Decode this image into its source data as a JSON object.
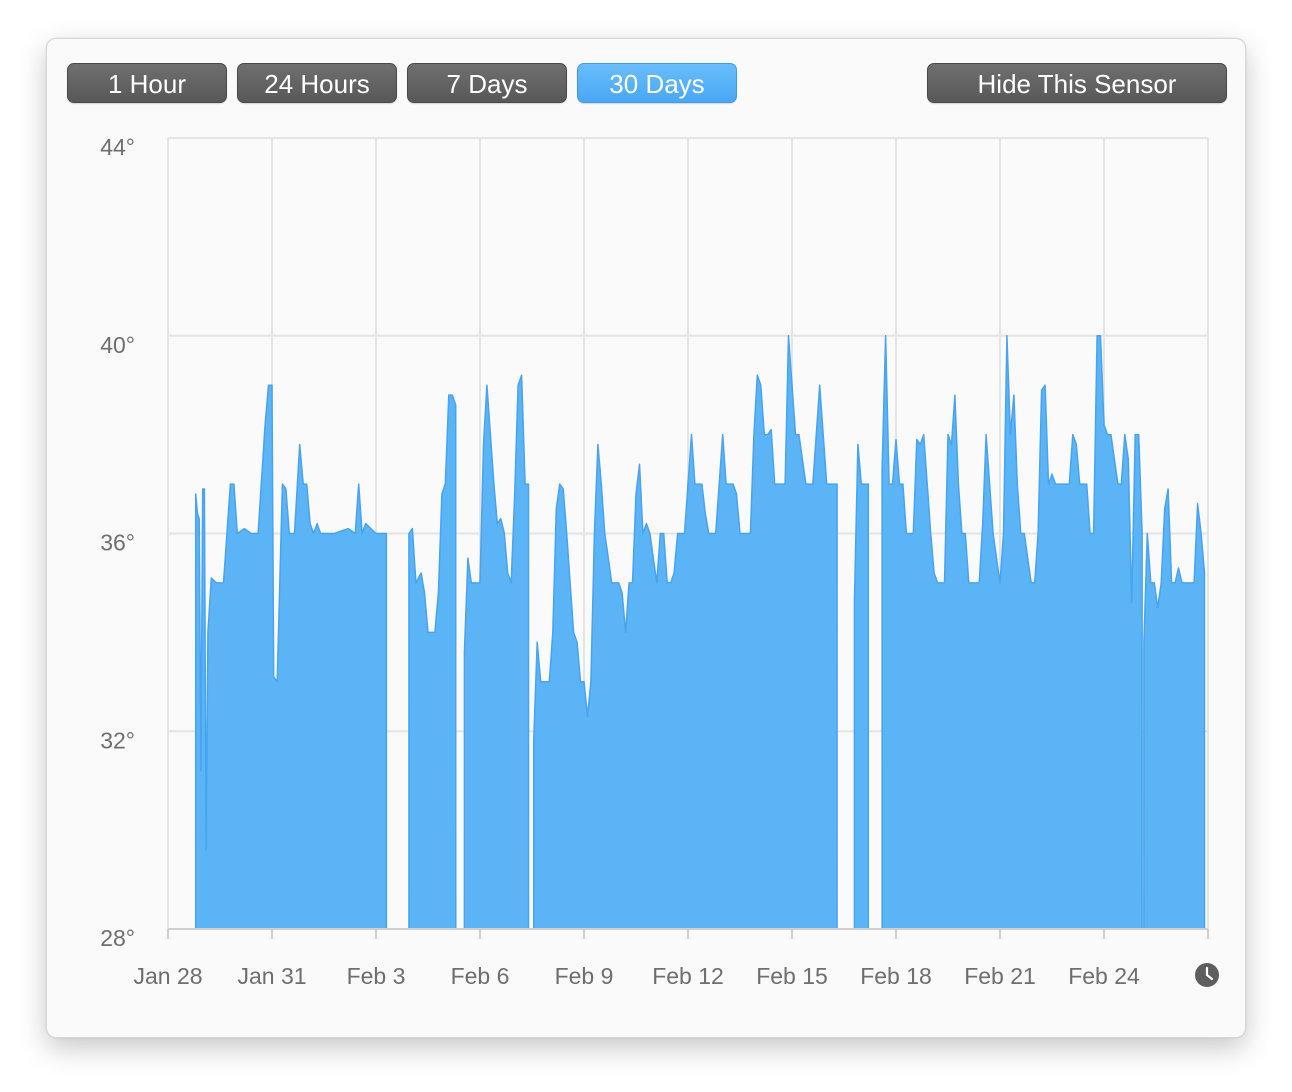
{
  "toolbar": {
    "range_buttons": [
      {
        "label": "1 Hour",
        "selected": false
      },
      {
        "label": "24 Hours",
        "selected": false
      },
      {
        "label": "7 Days",
        "selected": false
      },
      {
        "label": "30 Days",
        "selected": true
      }
    ],
    "hide_label": "Hide This Sensor"
  },
  "colors": {
    "accent": "#5ab4f5",
    "area_fill": "#5ab4f5",
    "area_stroke": "#4aa3ee",
    "button_dark": "#626262",
    "grid": "#e4e4e4",
    "axis_text": "#6e6e6e"
  },
  "icons": {
    "time_icon": "clock-icon"
  },
  "chart_data": {
    "type": "area",
    "title": "",
    "xlabel": "",
    "ylabel": "",
    "y_tick_labels": [
      "44°",
      "40°",
      "36°",
      "32°",
      "28°"
    ],
    "y_ticks": [
      44,
      40,
      36,
      32,
      28
    ],
    "ylim": [
      28,
      44
    ],
    "x_tick_labels": [
      "Jan 28",
      "Jan 31",
      "Feb 3",
      "Feb 6",
      "Feb 9",
      "Feb 12",
      "Feb 15",
      "Feb 18",
      "Feb 21",
      "Feb 24"
    ],
    "x_ticks": [
      0,
      3,
      6,
      9,
      12,
      15,
      18,
      21,
      24,
      27
    ],
    "xlim": [
      0,
      30
    ],
    "grid": true,
    "series": [
      {
        "segments": [
          [
            [
              0.8,
              36.8
            ],
            [
              0.85,
              36.4
            ],
            [
              0.9,
              36.3
            ],
            [
              0.95,
              31.2
            ],
            [
              1.0,
              36.9
            ],
            [
              1.05,
              36.9
            ],
            [
              1.1,
              29.6
            ],
            [
              1.15,
              34.0
            ],
            [
              1.25,
              35.1
            ],
            [
              1.4,
              35.0
            ],
            [
              1.6,
              35.0
            ],
            [
              1.8,
              37.0
            ],
            [
              1.9,
              37.0
            ],
            [
              2.0,
              36.0
            ],
            [
              2.2,
              36.1
            ],
            [
              2.4,
              36.0
            ],
            [
              2.6,
              36.0
            ],
            [
              2.8,
              38.2
            ],
            [
              2.9,
              39.0
            ],
            [
              3.0,
              39.0
            ],
            [
              3.05,
              33.1
            ],
            [
              3.15,
              33.0
            ],
            [
              3.3,
              37.0
            ],
            [
              3.4,
              36.9
            ],
            [
              3.5,
              36.0
            ],
            [
              3.65,
              36.0
            ],
            [
              3.8,
              37.8
            ],
            [
              3.9,
              37.0
            ],
            [
              4.0,
              37.0
            ],
            [
              4.1,
              36.2
            ],
            [
              4.2,
              36.0
            ],
            [
              4.3,
              36.2
            ],
            [
              4.4,
              36.0
            ],
            [
              4.8,
              36.0
            ],
            [
              5.2,
              36.1
            ],
            [
              5.4,
              36.0
            ],
            [
              5.5,
              37.0
            ],
            [
              5.6,
              36.0
            ],
            [
              5.7,
              36.2
            ],
            [
              6.0,
              36.0
            ],
            [
              6.3,
              36.0
            ]
          ],
          [
            [
              6.95,
              36.0
            ],
            [
              7.05,
              36.1
            ],
            [
              7.15,
              35.0
            ],
            [
              7.3,
              35.2
            ],
            [
              7.4,
              34.8
            ],
            [
              7.5,
              34.0
            ],
            [
              7.7,
              34.0
            ],
            [
              7.8,
              34.8
            ],
            [
              7.9,
              36.8
            ],
            [
              8.0,
              37.0
            ],
            [
              8.1,
              38.8
            ],
            [
              8.2,
              38.8
            ],
            [
              8.3,
              38.6
            ]
          ],
          [
            [
              8.55,
              33.6
            ],
            [
              8.65,
              35.5
            ],
            [
              8.75,
              35.0
            ],
            [
              8.9,
              35.0
            ],
            [
              9.0,
              35.0
            ],
            [
              9.1,
              37.8
            ],
            [
              9.2,
              39.0
            ],
            [
              9.3,
              38.0
            ],
            [
              9.4,
              37.0
            ],
            [
              9.5,
              36.2
            ],
            [
              9.6,
              36.3
            ],
            [
              9.7,
              36.0
            ],
            [
              9.8,
              35.2
            ],
            [
              9.9,
              35.0
            ],
            [
              10.0,
              36.8
            ],
            [
              10.1,
              39.0
            ],
            [
              10.2,
              39.2
            ],
            [
              10.3,
              37.0
            ],
            [
              10.4,
              37.0
            ]
          ],
          [
            [
              10.55,
              31.8
            ],
            [
              10.65,
              33.8
            ],
            [
              10.75,
              33.0
            ],
            [
              11.0,
              33.0
            ],
            [
              11.1,
              34.0
            ],
            [
              11.2,
              36.5
            ],
            [
              11.3,
              37.0
            ],
            [
              11.4,
              36.9
            ],
            [
              11.5,
              36.0
            ],
            [
              11.6,
              35.0
            ],
            [
              11.7,
              34.0
            ],
            [
              11.8,
              33.8
            ],
            [
              11.9,
              33.0
            ],
            [
              12.0,
              33.0
            ],
            [
              12.1,
              32.3
            ],
            [
              12.2,
              33.0
            ],
            [
              12.3,
              36.0
            ],
            [
              12.4,
              37.8
            ],
            [
              12.5,
              37.0
            ],
            [
              12.6,
              36.0
            ],
            [
              12.7,
              35.5
            ],
            [
              12.8,
              35.0
            ],
            [
              13.0,
              35.0
            ],
            [
              13.1,
              34.8
            ],
            [
              13.2,
              34.0
            ],
            [
              13.3,
              35.0
            ],
            [
              13.4,
              35.0
            ],
            [
              13.5,
              36.8
            ],
            [
              13.6,
              37.4
            ],
            [
              13.7,
              36.0
            ],
            [
              13.8,
              36.2
            ],
            [
              13.9,
              36.0
            ],
            [
              14.0,
              35.5
            ],
            [
              14.1,
              35.0
            ],
            [
              14.2,
              36.0
            ],
            [
              14.3,
              36.0
            ],
            [
              14.4,
              35.0
            ],
            [
              14.5,
              35.0
            ],
            [
              14.6,
              35.2
            ],
            [
              14.7,
              36.0
            ],
            [
              14.8,
              36.0
            ],
            [
              14.9,
              36.0
            ],
            [
              15.0,
              37.0
            ],
            [
              15.1,
              38.0
            ],
            [
              15.2,
              37.0
            ],
            [
              15.3,
              37.0
            ],
            [
              15.4,
              37.0
            ],
            [
              15.5,
              36.4
            ],
            [
              15.6,
              36.0
            ],
            [
              15.8,
              36.0
            ],
            [
              15.9,
              37.0
            ],
            [
              16.0,
              38.0
            ],
            [
              16.1,
              37.0
            ],
            [
              16.2,
              37.0
            ],
            [
              16.3,
              37.0
            ],
            [
              16.4,
              36.8
            ],
            [
              16.5,
              36.0
            ],
            [
              16.8,
              36.0
            ],
            [
              16.9,
              38.0
            ],
            [
              17.0,
              39.2
            ],
            [
              17.1,
              39.0
            ],
            [
              17.2,
              38.0
            ],
            [
              17.3,
              38.0
            ],
            [
              17.4,
              38.1
            ],
            [
              17.5,
              37.0
            ],
            [
              17.7,
              37.0
            ],
            [
              17.8,
              37.0
            ],
            [
              17.9,
              40.0
            ],
            [
              18.0,
              39.0
            ],
            [
              18.1,
              38.0
            ],
            [
              18.2,
              38.0
            ],
            [
              18.4,
              37.0
            ],
            [
              18.6,
              37.0
            ],
            [
              18.7,
              38.0
            ],
            [
              18.8,
              39.0
            ],
            [
              18.9,
              38.0
            ],
            [
              19.0,
              37.0
            ],
            [
              19.1,
              37.0
            ],
            [
              19.3,
              37.0
            ]
          ],
          [
            [
              19.8,
              34.6
            ],
            [
              19.9,
              37.8
            ],
            [
              20.0,
              37.0
            ],
            [
              20.1,
              37.0
            ],
            [
              20.2,
              37.0
            ]
          ],
          [
            [
              20.6,
              37.3
            ],
            [
              20.7,
              40.0
            ],
            [
              20.8,
              37.0
            ],
            [
              20.9,
              37.0
            ],
            [
              21.0,
              37.9
            ],
            [
              21.1,
              37.0
            ],
            [
              21.2,
              37.0
            ],
            [
              21.3,
              36.0
            ],
            [
              21.5,
              36.0
            ],
            [
              21.6,
              37.9
            ],
            [
              21.7,
              37.8
            ],
            [
              21.8,
              38.0
            ],
            [
              21.9,
              37.0
            ],
            [
              22.0,
              36.0
            ],
            [
              22.1,
              35.2
            ],
            [
              22.2,
              35.0
            ],
            [
              22.4,
              35.0
            ],
            [
              22.5,
              38.0
            ],
            [
              22.6,
              37.8
            ],
            [
              22.7,
              38.8
            ],
            [
              22.8,
              37.0
            ],
            [
              22.9,
              36.0
            ],
            [
              23.0,
              36.0
            ],
            [
              23.1,
              35.0
            ],
            [
              23.2,
              35.0
            ],
            [
              23.4,
              35.0
            ],
            [
              23.5,
              36.2
            ],
            [
              23.6,
              38.0
            ],
            [
              23.7,
              37.0
            ],
            [
              23.8,
              36.0
            ],
            [
              23.9,
              35.5
            ],
            [
              24.0,
              35.0
            ],
            [
              24.1,
              36.0
            ],
            [
              24.2,
              40.0
            ],
            [
              24.3,
              38.0
            ],
            [
              24.4,
              38.8
            ],
            [
              24.5,
              37.0
            ],
            [
              24.6,
              36.0
            ],
            [
              24.7,
              36.0
            ],
            [
              24.8,
              35.5
            ],
            [
              24.9,
              35.0
            ],
            [
              25.0,
              35.0
            ],
            [
              25.1,
              36.0
            ],
            [
              25.2,
              38.9
            ],
            [
              25.3,
              39.0
            ],
            [
              25.4,
              37.0
            ],
            [
              25.5,
              37.2
            ],
            [
              25.6,
              37.0
            ],
            [
              25.8,
              37.0
            ],
            [
              26.0,
              37.0
            ],
            [
              26.1,
              38.0
            ],
            [
              26.2,
              37.8
            ],
            [
              26.3,
              37.0
            ],
            [
              26.5,
              37.0
            ],
            [
              26.6,
              36.0
            ],
            [
              26.7,
              36.0
            ],
            [
              26.8,
              40.0
            ],
            [
              26.9,
              40.0
            ],
            [
              27.0,
              38.2
            ],
            [
              27.1,
              38.0
            ],
            [
              27.2,
              38.0
            ],
            [
              27.4,
              37.0
            ],
            [
              27.5,
              37.0
            ],
            [
              27.6,
              38.0
            ],
            [
              27.7,
              37.5
            ],
            [
              27.8,
              34.6
            ],
            [
              27.9,
              38.0
            ],
            [
              28.0,
              38.0
            ],
            [
              28.1,
              36.0
            ]
          ],
          [
            [
              28.15,
              33.8
            ],
            [
              28.25,
              36.0
            ],
            [
              28.35,
              35.0
            ],
            [
              28.45,
              35.0
            ],
            [
              28.55,
              34.5
            ],
            [
              28.65,
              35.0
            ],
            [
              28.75,
              36.5
            ],
            [
              28.85,
              36.9
            ],
            [
              28.95,
              35.0
            ],
            [
              29.05,
              35.0
            ],
            [
              29.15,
              35.3
            ],
            [
              29.25,
              35.0
            ],
            [
              29.35,
              35.0
            ],
            [
              29.5,
              35.0
            ],
            [
              29.6,
              35.0
            ],
            [
              29.7,
              36.6
            ],
            [
              29.8,
              36.0
            ],
            [
              29.9,
              35.2
            ]
          ]
        ]
      }
    ]
  }
}
